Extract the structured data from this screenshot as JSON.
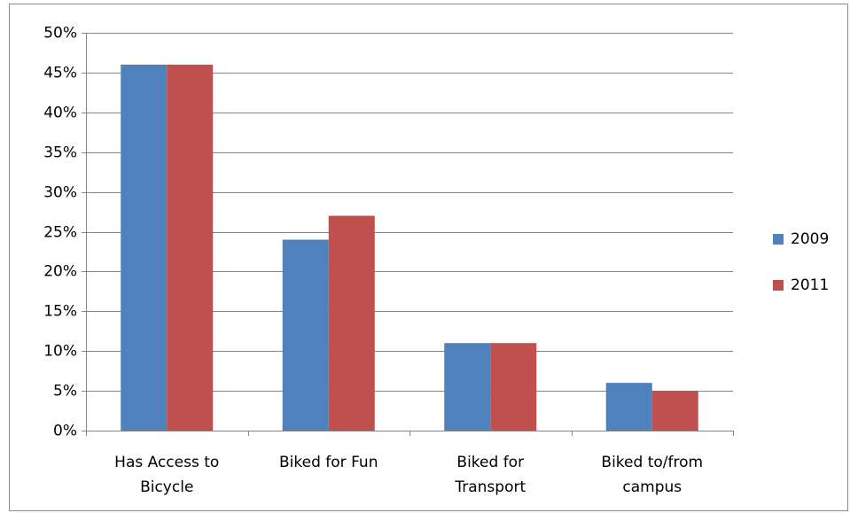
{
  "chart_data": {
    "type": "bar",
    "categories": [
      "Has Access to Bicycle",
      "Biked for Fun",
      "Biked for Transport",
      "Biked to/from campus"
    ],
    "series": [
      {
        "name": "2009",
        "color": "#4f81bd",
        "values": [
          46,
          24,
          11,
          6
        ]
      },
      {
        "name": "2011",
        "color": "#c0504d",
        "values": [
          46,
          27,
          11,
          5
        ]
      }
    ],
    "ylim": [
      0,
      50
    ],
    "yticks": [
      {
        "value": 0,
        "label": "0%"
      },
      {
        "value": 5,
        "label": "5%"
      },
      {
        "value": 10,
        "label": "10%"
      },
      {
        "value": 15,
        "label": "15%"
      },
      {
        "value": 20,
        "label": "20%"
      },
      {
        "value": 25,
        "label": "25%"
      },
      {
        "value": 30,
        "label": "30%"
      },
      {
        "value": 35,
        "label": "35%"
      },
      {
        "value": 40,
        "label": "40%"
      },
      {
        "value": 45,
        "label": "45%"
      },
      {
        "value": 50,
        "label": "50%"
      }
    ],
    "grid": true,
    "legend": "right"
  }
}
